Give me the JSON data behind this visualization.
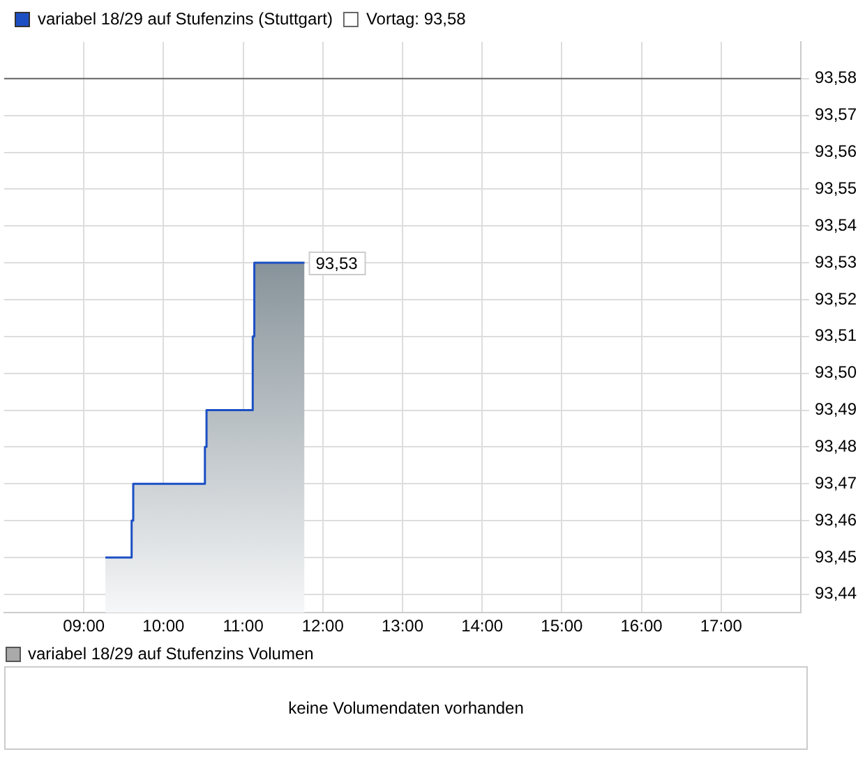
{
  "chart_data": {
    "type": "area",
    "x": [
      9.27,
      9.6,
      9.6,
      9.62,
      9.62,
      10.52,
      10.52,
      10.54,
      10.54,
      11.12,
      11.12,
      11.14,
      11.14,
      11.77
    ],
    "series": [
      {
        "name": "variabel 18/29 auf Stufenzins (Stuttgart)",
        "color": "#1c4fc4",
        "values": [
          93.45,
          93.45,
          93.46,
          93.46,
          93.47,
          93.47,
          93.48,
          93.48,
          93.49,
          93.49,
          93.51,
          93.51,
          93.53,
          93.53
        ]
      }
    ],
    "xlim": [
      8,
      18
    ],
    "xticks": [
      {
        "value": 9,
        "label": "09:00"
      },
      {
        "value": 10,
        "label": "10:00"
      },
      {
        "value": 11,
        "label": "11:00"
      },
      {
        "value": 12,
        "label": "12:00"
      },
      {
        "value": 13,
        "label": "13:00"
      },
      {
        "value": 14,
        "label": "14:00"
      },
      {
        "value": 15,
        "label": "15:00"
      },
      {
        "value": 16,
        "label": "16:00"
      },
      {
        "value": 17,
        "label": "17:00"
      }
    ],
    "ylim": [
      93.435,
      93.59
    ],
    "yticks": [
      {
        "value": 93.44,
        "label": "93,44"
      },
      {
        "value": 93.45,
        "label": "93,45"
      },
      {
        "value": 93.46,
        "label": "93,46"
      },
      {
        "value": 93.47,
        "label": "93,47"
      },
      {
        "value": 93.48,
        "label": "93,48"
      },
      {
        "value": 93.49,
        "label": "93,49"
      },
      {
        "value": 93.5,
        "label": "93,50"
      },
      {
        "value": 93.51,
        "label": "93,51"
      },
      {
        "value": 93.52,
        "label": "93,52"
      },
      {
        "value": 93.53,
        "label": "93,53"
      },
      {
        "value": 93.54,
        "label": "93,54"
      },
      {
        "value": 93.55,
        "label": "93,55"
      },
      {
        "value": 93.56,
        "label": "93,56"
      },
      {
        "value": 93.57,
        "label": "93,57"
      },
      {
        "value": 93.58,
        "label": "93,58"
      }
    ],
    "ref_lines": [
      {
        "axis": "y",
        "value": 93.58,
        "label": "Vortag: 93,58",
        "color": "#666666"
      }
    ],
    "annotations": [
      {
        "text": "93,53",
        "x": 11.77,
        "y": 93.53
      },
      "variabel 18/29 auf Stufenzins Volumen",
      "keine Volumendaten vorhanden"
    ],
    "grid": true,
    "legend": "top left"
  }
}
